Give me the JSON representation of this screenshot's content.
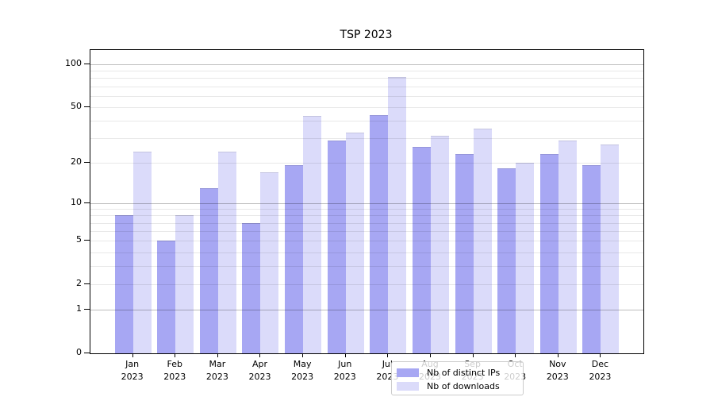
{
  "title": "TSP 2023",
  "legend": {
    "items": [
      {
        "label": "Nb of distinct IPs",
        "color": "#a7a7f3"
      },
      {
        "label": "Nb of downloads",
        "color": "#dbdbfa"
      }
    ]
  },
  "chart_data": {
    "type": "bar",
    "title": "TSP 2023",
    "xlabel": "",
    "ylabel": "",
    "yscale": "log1p",
    "ylim": [
      0,
      126
    ],
    "grid": "on",
    "legend_position": "lower center inside plot",
    "categories": [
      {
        "month": "Jan",
        "year": "2023"
      },
      {
        "month": "Feb",
        "year": "2023"
      },
      {
        "month": "Mar",
        "year": "2023"
      },
      {
        "month": "Apr",
        "year": "2023"
      },
      {
        "month": "May",
        "year": "2023"
      },
      {
        "month": "Jun",
        "year": "2023"
      },
      {
        "month": "Jul",
        "year": "2023"
      },
      {
        "month": "Aug",
        "year": "2023"
      },
      {
        "month": "Sep",
        "year": "2023"
      },
      {
        "month": "Oct",
        "year": "2023"
      },
      {
        "month": "Nov",
        "year": "2023"
      },
      {
        "month": "Dec",
        "year": "2023"
      }
    ],
    "series": [
      {
        "name": "Nb of distinct IPs",
        "key": "ips",
        "color": "#a7a7f3",
        "values": [
          8,
          5,
          13,
          7,
          19,
          29,
          44,
          26,
          23,
          18,
          23,
          19
        ]
      },
      {
        "name": "Nb of downloads",
        "key": "downloads",
        "color": "#dbdbfa",
        "values": [
          24,
          8,
          24,
          17,
          43,
          33,
          81,
          31,
          35,
          20,
          29,
          27
        ]
      }
    ],
    "y_ticks": [
      0,
      1,
      2,
      5,
      10,
      20,
      50,
      100
    ],
    "y_major_gridlines": [
      1,
      10,
      100
    ],
    "y_minor_gridlines": [
      2,
      3,
      4,
      5,
      6,
      7,
      8,
      9,
      20,
      30,
      40,
      50,
      60,
      70,
      80,
      90
    ]
  }
}
